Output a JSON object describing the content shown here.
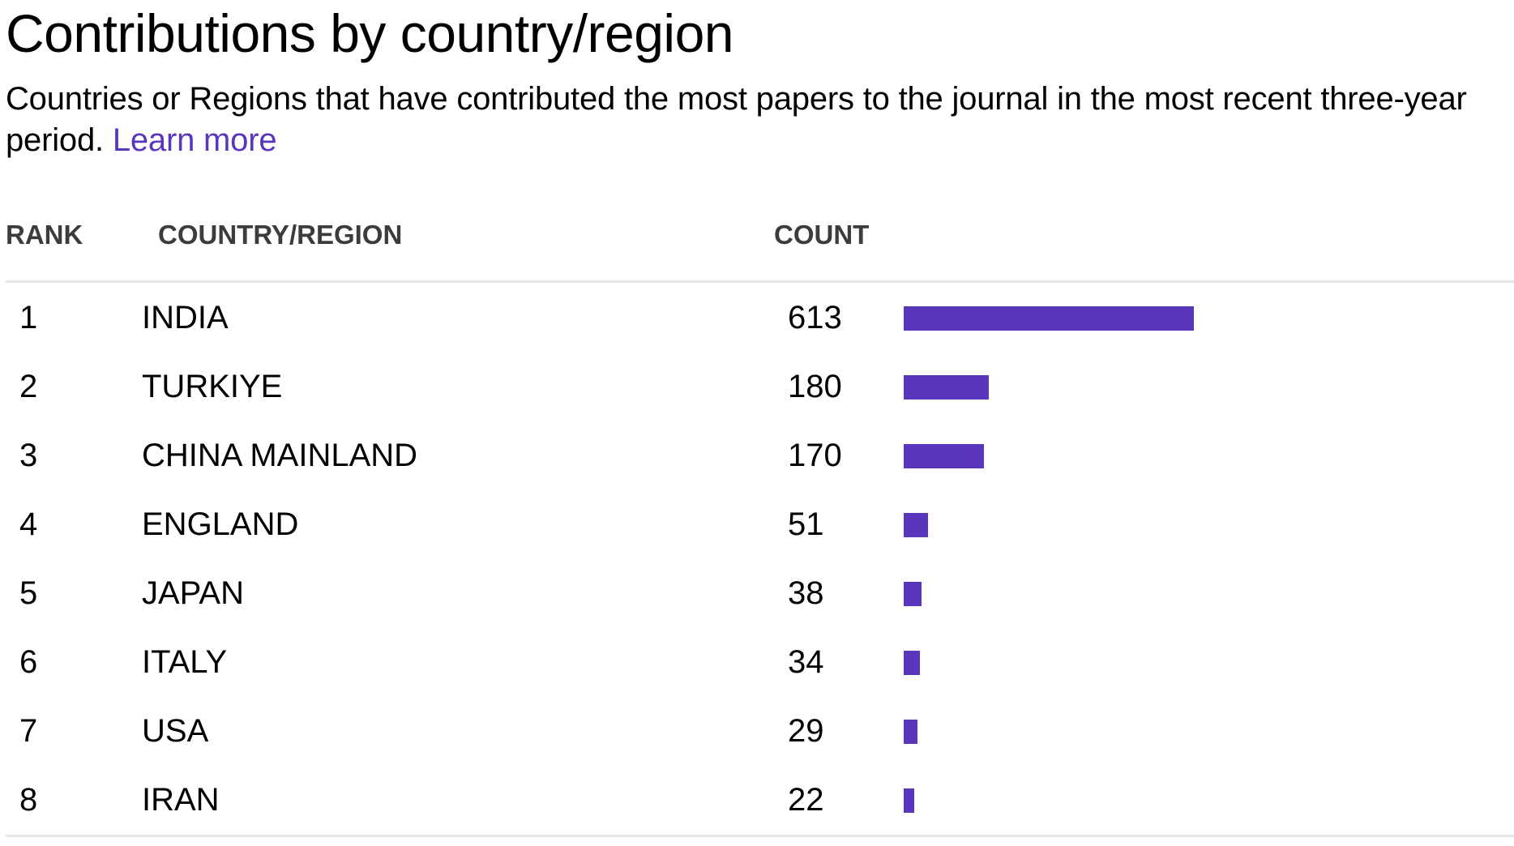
{
  "title": "Contributions by country/region",
  "subtitle_text": "Countries or Regions that have contributed the most papers to the journal in the most recent three-year period.",
  "learn_more_label": "Learn more",
  "colors": {
    "accent": "#5a36bd",
    "header_text": "#3c3c3c",
    "divider": "#e6e6e6"
  },
  "table": {
    "headers": {
      "rank": "RANK",
      "country": "COUNTRY/REGION",
      "count": "COUNT"
    }
  },
  "chart_data": {
    "type": "bar",
    "orientation": "horizontal",
    "title": "Contributions by country/region",
    "xlabel": "",
    "ylabel": "",
    "categories": [
      "INDIA",
      "TURKIYE",
      "CHINA MAINLAND",
      "ENGLAND",
      "JAPAN",
      "ITALY",
      "USA",
      "IRAN"
    ],
    "ranks": [
      "1",
      "2",
      "3",
      "4",
      "5",
      "6",
      "7",
      "8"
    ],
    "values": [
      613,
      180,
      170,
      51,
      38,
      34,
      29,
      22
    ],
    "grid": false
  }
}
